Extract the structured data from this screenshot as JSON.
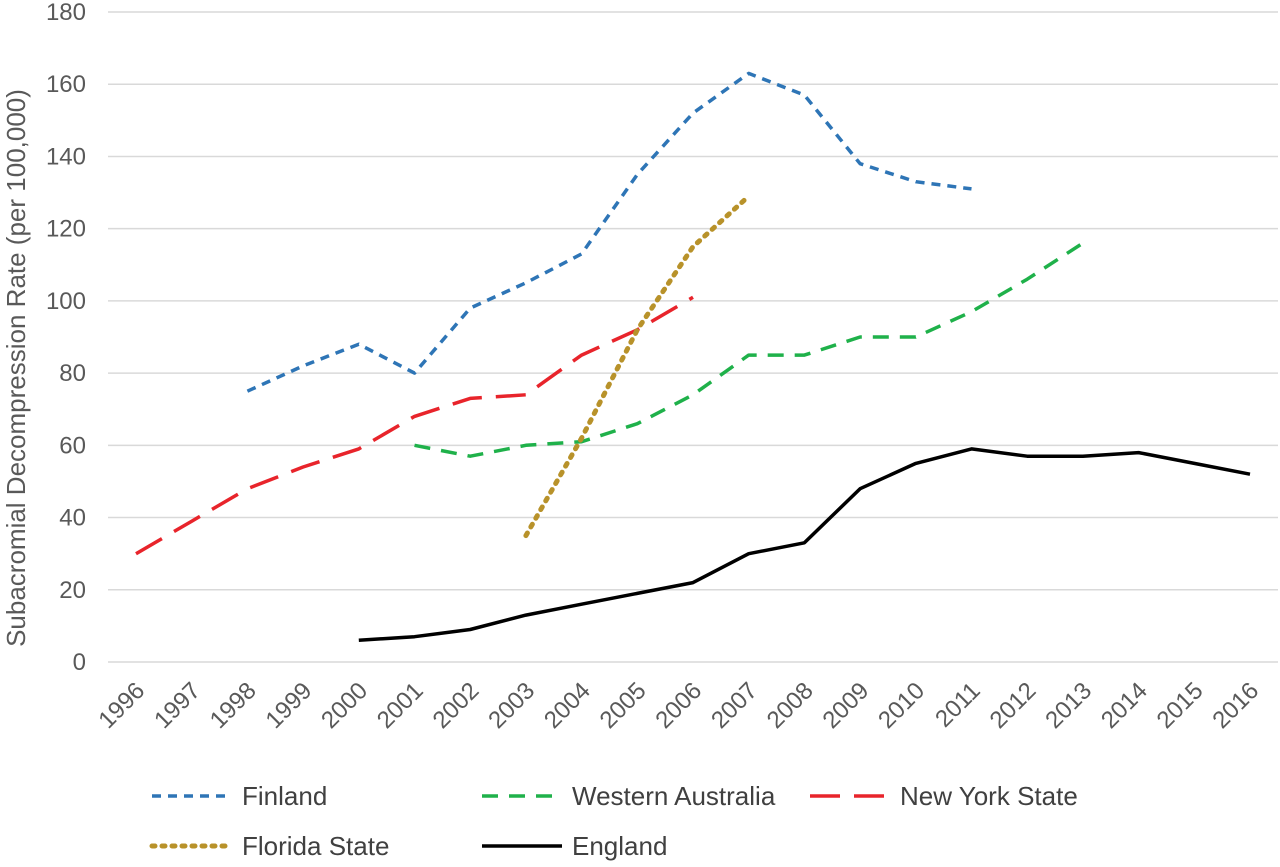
{
  "chart_data": {
    "type": "line",
    "title": "",
    "xlabel": "",
    "ylabel": "Subacromial Decompression Rate (per 100,000)",
    "ylim": [
      0,
      180
    ],
    "yticks": [
      0,
      20,
      40,
      60,
      80,
      100,
      120,
      140,
      160,
      180
    ],
    "categories": [
      "1996",
      "1997",
      "1998",
      "1999",
      "2000",
      "2001",
      "2002",
      "2003",
      "2004",
      "2005",
      "2006",
      "2007",
      "2008",
      "2009",
      "2010",
      "2011",
      "2012",
      "2013",
      "2014",
      "2015",
      "2016"
    ],
    "grid": "horizontal",
    "legend_position": "bottom",
    "series": [
      {
        "name": "Finland",
        "color": "#2e75b6",
        "dash": "short-dash",
        "values": [
          null,
          null,
          75,
          82,
          88,
          80,
          98,
          105,
          113,
          135,
          152,
          163,
          157,
          138,
          133,
          131,
          null,
          null,
          null,
          null,
          null
        ]
      },
      {
        "name": "Western Australia",
        "color": "#1fb14a",
        "dash": "dash",
        "values": [
          null,
          null,
          null,
          null,
          null,
          60,
          57,
          60,
          61,
          66,
          74,
          85,
          85,
          90,
          90,
          97,
          106,
          116,
          null,
          null,
          null
        ]
      },
      {
        "name": "New York State",
        "color": "#e8242b",
        "dash": "long-dash",
        "values": [
          30,
          39,
          48,
          54,
          59,
          68,
          73,
          74,
          85,
          92,
          101,
          null,
          null,
          null,
          null,
          null,
          null,
          null,
          null,
          null,
          null
        ]
      },
      {
        "name": "Florida State",
        "color": "#b8922a",
        "dash": "dot",
        "values": [
          null,
          null,
          null,
          null,
          null,
          null,
          null,
          35,
          62,
          92,
          115,
          129,
          null,
          null,
          null,
          null,
          null,
          null,
          null,
          null,
          null
        ]
      },
      {
        "name": "England",
        "color": "#000000",
        "dash": "solid",
        "values": [
          null,
          null,
          null,
          null,
          6,
          7,
          9,
          13,
          16,
          19,
          22,
          30,
          33,
          48,
          55,
          59,
          57,
          57,
          58,
          55,
          52
        ]
      }
    ]
  }
}
